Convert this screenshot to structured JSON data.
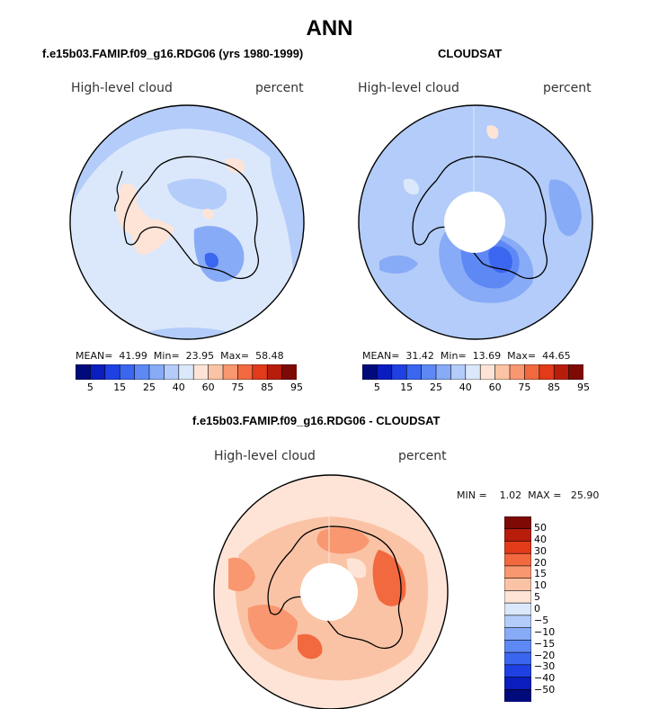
{
  "page": {
    "title": "ANN"
  },
  "palette": [
    "#000a7a",
    "#0a1dbf",
    "#1f41e3",
    "#3a66f0",
    "#5e89f5",
    "#88abf7",
    "#b3ccf9",
    "#dbe8fb",
    "#fde4d6",
    "#fbc3a5",
    "#f89770",
    "#f2693f",
    "#e13b1a",
    "#b81d0c",
    "#7d0a05"
  ],
  "diff_palette": [
    "#000a7a",
    "#0a1dbf",
    "#1f41e3",
    "#3a66f0",
    "#5e89f5",
    "#88abf7",
    "#b3ccf9",
    "#dbe8fb",
    "#fde4d6",
    "#fbc3a5",
    "#f89770",
    "#f2693f",
    "#e13b1a",
    "#b81d0c",
    "#7d0a05"
  ],
  "panels": [
    {
      "title": "f.e15b03.FAMIP.f09_g16.RDG06 (yrs 1980-1999)",
      "variable": "High-level cloud",
      "units": "percent",
      "stats": {
        "mean_label": "MEAN=",
        "mean": "41.99",
        "min_label": "Min=",
        "min": "23.95",
        "max_label": "Max=",
        "max": "58.48"
      },
      "colorbar_labels": [
        "5",
        "15",
        "25",
        "40",
        "60",
        "75",
        "85",
        "95"
      ]
    },
    {
      "title": "CLOUDSAT",
      "variable": "High-level cloud",
      "units": "percent",
      "stats": {
        "mean_label": "MEAN=",
        "mean": "31.42",
        "min_label": "Min=",
        "min": "13.69",
        "max_label": "Max=",
        "max": "44.65"
      },
      "colorbar_labels": [
        "5",
        "15",
        "25",
        "40",
        "60",
        "75",
        "85",
        "95"
      ]
    },
    {
      "title": "f.e15b03.FAMIP.f09_g16.RDG06 - CLOUDSAT",
      "variable": "High-level cloud",
      "units": "percent",
      "stats_text": "MIN =    1.02  MAX =   25.90",
      "colorbar_labels": [
        "50",
        "40",
        "30",
        "20",
        "15",
        "10",
        "5",
        "0",
        "−5",
        "−10",
        "−15",
        "−20",
        "−30",
        "−40",
        "−50"
      ]
    }
  ],
  "chart_data": [
    {
      "type": "heatmap",
      "projection": "south-polar-stereographic",
      "title": "f.e15b03.FAMIP.f09_g16.RDG06 (yrs 1980-1999)",
      "variable": "High-level cloud",
      "units": "percent",
      "mean": 41.99,
      "min": 23.95,
      "max": 58.48,
      "contour_levels": [
        5,
        10,
        15,
        20,
        25,
        30,
        35,
        40,
        45,
        50,
        55,
        60,
        65,
        70,
        75,
        80,
        85,
        90,
        95
      ],
      "colorbar_tick_labels": [
        5,
        15,
        25,
        40,
        60,
        75,
        85,
        95
      ]
    },
    {
      "type": "heatmap",
      "projection": "south-polar-stereographic",
      "title": "CLOUDSAT",
      "variable": "High-level cloud",
      "units": "percent",
      "mean": 31.42,
      "min": 13.69,
      "max": 44.65,
      "colorbar_tick_labels": [
        5,
        15,
        25,
        40,
        60,
        75,
        85,
        95
      ]
    },
    {
      "type": "heatmap",
      "projection": "south-polar-stereographic",
      "title": "f.e15b03.FAMIP.f09_g16.RDG06 - CLOUDSAT",
      "variable": "High-level cloud",
      "units": "percent",
      "min": 1.02,
      "max": 25.9,
      "colorbar_tick_labels": [
        50,
        40,
        30,
        20,
        15,
        10,
        5,
        0,
        -5,
        -10,
        -15,
        -20,
        -30,
        -40,
        -50
      ]
    }
  ]
}
